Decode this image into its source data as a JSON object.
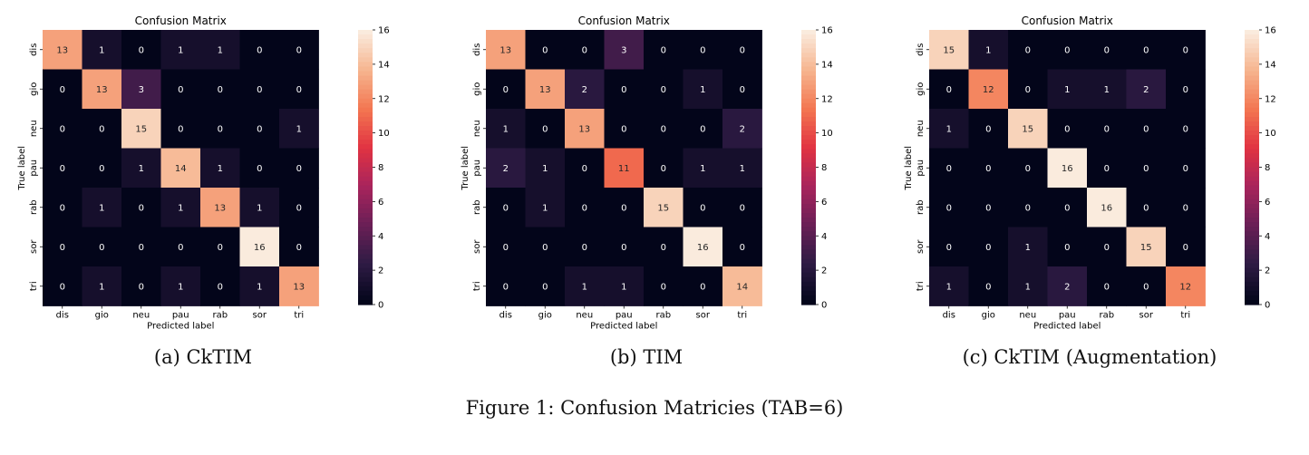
{
  "figure": {
    "caption": "Figure 1: Confusion Matricies (TAB=6)"
  },
  "colormap": [
    "#03051a",
    "#2e1b44",
    "#6a1f56",
    "#a8245c",
    "#e13342",
    "#f37651",
    "#f6b48e",
    "#faebdd"
  ],
  "chart_data": [
    {
      "type": "heatmap",
      "caption": "(a) CkTIM",
      "title": "Confusion Matrix",
      "xlabel": "Predicted label",
      "ylabel": "True label",
      "x_categories": [
        "dis",
        "gio",
        "neu",
        "pau",
        "rab",
        "sor",
        "tri"
      ],
      "y_categories": [
        "dis",
        "gio",
        "neu",
        "pau",
        "rab",
        "sor",
        "tri"
      ],
      "values": [
        [
          13,
          1,
          0,
          1,
          1,
          0,
          0
        ],
        [
          0,
          13,
          3,
          0,
          0,
          0,
          0
        ],
        [
          0,
          0,
          15,
          0,
          0,
          0,
          1
        ],
        [
          0,
          0,
          1,
          14,
          1,
          0,
          0
        ],
        [
          0,
          1,
          0,
          1,
          13,
          1,
          0
        ],
        [
          0,
          0,
          0,
          0,
          0,
          16,
          0
        ],
        [
          0,
          1,
          0,
          1,
          0,
          1,
          13
        ]
      ],
      "colorbar_range": [
        0,
        16
      ],
      "colorbar_ticks": [
        0,
        2,
        4,
        6,
        8,
        10,
        12,
        14,
        16
      ]
    },
    {
      "type": "heatmap",
      "caption": "(b) TIM",
      "title": "Confusion Matrix",
      "xlabel": "Predicted label",
      "ylabel": "True label",
      "x_categories": [
        "dis",
        "gio",
        "neu",
        "pau",
        "rab",
        "sor",
        "tri"
      ],
      "y_categories": [
        "dis",
        "gio",
        "neu",
        "pau",
        "rab",
        "sor",
        "tri"
      ],
      "values": [
        [
          13,
          0,
          0,
          3,
          0,
          0,
          0
        ],
        [
          0,
          13,
          2,
          0,
          0,
          1,
          0
        ],
        [
          1,
          0,
          13,
          0,
          0,
          0,
          2
        ],
        [
          2,
          1,
          0,
          11,
          0,
          1,
          1
        ],
        [
          0,
          1,
          0,
          0,
          15,
          0,
          0
        ],
        [
          0,
          0,
          0,
          0,
          0,
          16,
          0
        ],
        [
          0,
          0,
          1,
          1,
          0,
          0,
          14
        ]
      ],
      "colorbar_range": [
        0,
        16
      ],
      "colorbar_ticks": [
        0,
        2,
        4,
        6,
        8,
        10,
        12,
        14,
        16
      ]
    },
    {
      "type": "heatmap",
      "caption": "(c) CkTIM (Augmentation)",
      "title": "Confusion Matrix",
      "xlabel": "Predicted label",
      "ylabel": "True label",
      "x_categories": [
        "dis",
        "gio",
        "neu",
        "pau",
        "rab",
        "sor",
        "tri"
      ],
      "y_categories": [
        "dis",
        "gio",
        "neu",
        "pau",
        "rab",
        "sor",
        "tri"
      ],
      "values": [
        [
          15,
          1,
          0,
          0,
          0,
          0,
          0
        ],
        [
          0,
          12,
          0,
          1,
          1,
          2,
          0
        ],
        [
          1,
          0,
          15,
          0,
          0,
          0,
          0
        ],
        [
          0,
          0,
          0,
          16,
          0,
          0,
          0
        ],
        [
          0,
          0,
          0,
          0,
          16,
          0,
          0
        ],
        [
          0,
          0,
          1,
          0,
          0,
          15,
          0
        ],
        [
          1,
          0,
          1,
          2,
          0,
          0,
          12
        ]
      ],
      "colorbar_range": [
        0,
        16
      ],
      "colorbar_ticks": [
        0,
        2,
        4,
        6,
        8,
        10,
        12,
        14,
        16
      ]
    }
  ]
}
